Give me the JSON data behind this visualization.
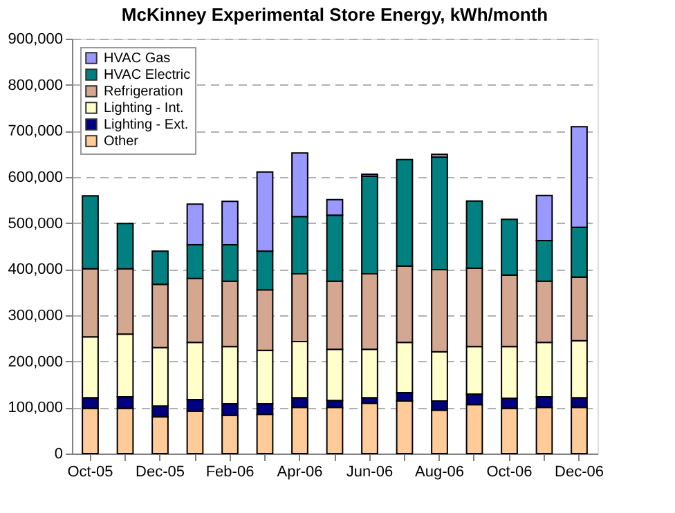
{
  "chart_data": {
    "type": "bar",
    "title": "McKinney Experimental Store Energy, kWh/month",
    "stacked": true,
    "categories": [
      "Oct-05",
      null,
      "Dec-05",
      null,
      "Feb-06",
      null,
      "Apr-06",
      null,
      "Jun-06",
      null,
      "Aug-06",
      null,
      "Oct-06",
      null,
      "Dec-06"
    ],
    "series": [
      {
        "name": "Other",
        "color": "#ffcc99",
        "values": [
          98000,
          98000,
          80000,
          92000,
          83000,
          85000,
          100000,
          100000,
          109000,
          114000,
          94000,
          106000,
          98000,
          100000,
          100000
        ]
      },
      {
        "name": "Lighting - Ext.",
        "color": "#000080",
        "values": [
          23000,
          25000,
          23000,
          25000,
          25000,
          23000,
          21000,
          15000,
          12000,
          18000,
          20000,
          23000,
          22000,
          23000,
          21000
        ]
      },
      {
        "name": "Lighting - Int.",
        "color": "#ffffcc",
        "values": [
          132000,
          136000,
          127000,
          124000,
          124000,
          116000,
          122000,
          111000,
          105000,
          109000,
          107000,
          103000,
          112000,
          118000,
          124000
        ]
      },
      {
        "name": "Refrigeration",
        "color": "#d4a890",
        "values": [
          148000,
          142000,
          137000,
          139000,
          142000,
          131000,
          147000,
          148000,
          164000,
          166000,
          178000,
          170000,
          155000,
          133000,
          138000
        ]
      },
      {
        "name": "HVAC Electric",
        "color": "#008080",
        "values": [
          158000,
          98000,
          72000,
          73000,
          79000,
          84000,
          124000,
          143000,
          212000,
          231000,
          244000,
          146000,
          121000,
          88000,
          108000
        ]
      },
      {
        "name": "HVAC Gas",
        "color": "#9999ff",
        "values": [
          null,
          null,
          null,
          88000,
          94000,
          172000,
          138000,
          34000,
          4000,
          null,
          6000,
          null,
          null,
          98000,
          218000
        ]
      }
    ],
    "ylim": [
      0,
      900000
    ],
    "yticks": [
      0,
      {
        "value": 100000,
        "label": "100,000"
      },
      {
        "value": 200000,
        "label": "200,000"
      },
      {
        "value": 300000,
        "label": "300,000"
      },
      {
        "value": 400000,
        "label": "400,000"
      },
      {
        "value": 500000,
        "label": "500,000"
      },
      {
        "value": 600000,
        "label": "600,000"
      },
      {
        "value": 700000,
        "label": "700,000"
      },
      {
        "value": 800000,
        "label": "800,000"
      },
      {
        "value": 900000,
        "label": "900,000"
      }
    ],
    "grid": "y",
    "legend": "top left"
  }
}
